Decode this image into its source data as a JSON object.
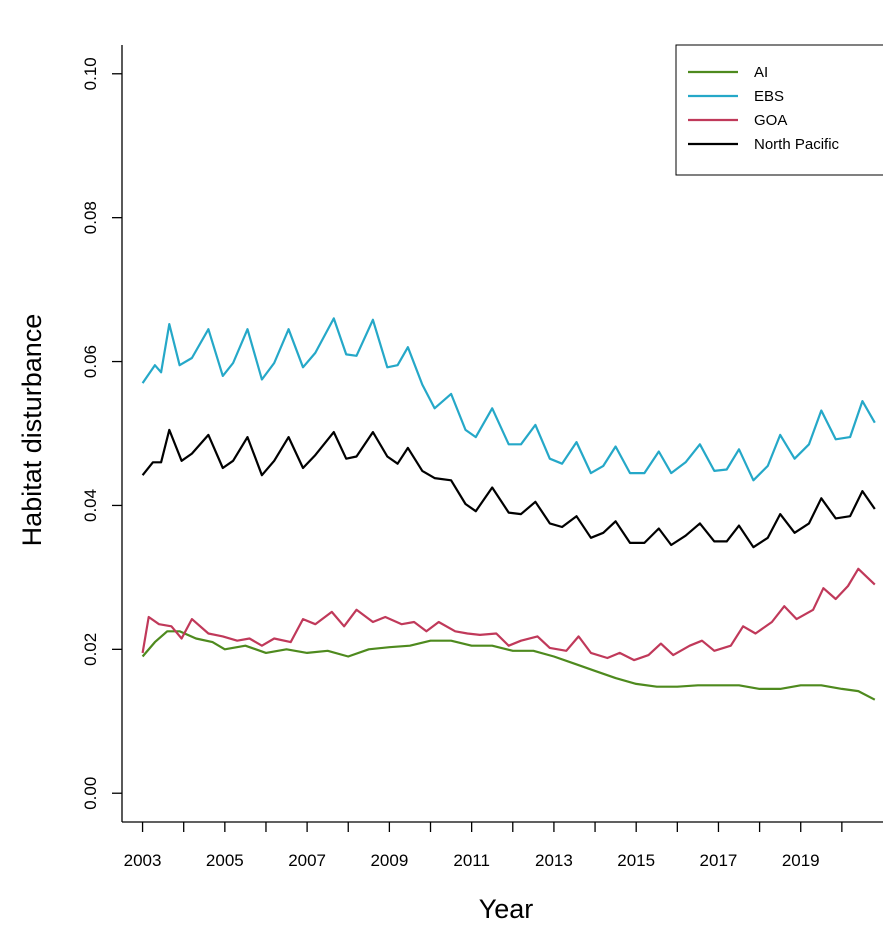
{
  "chart_data": {
    "type": "line",
    "title": "",
    "xlabel": "Year",
    "ylabel": "Habitat disturbance",
    "xlim": [
      2002.5,
      2021.0
    ],
    "ylim": [
      -0.004,
      0.104
    ],
    "x_ticks": [
      2003,
      2004,
      2005,
      2006,
      2007,
      2008,
      2009,
      2010,
      2011,
      2012,
      2013,
      2014,
      2015,
      2016,
      2017,
      2018,
      2019,
      2020
    ],
    "x_tick_labels": [
      "2003",
      "",
      "2005",
      "",
      "2007",
      "",
      "2009",
      "",
      "2011",
      "",
      "2013",
      "",
      "2015",
      "",
      "2017",
      "",
      "2019",
      ""
    ],
    "y_ticks": [
      0.0,
      0.02,
      0.04,
      0.06,
      0.08,
      0.1
    ],
    "y_tick_labels": [
      "0.00",
      "0.02",
      "0.04",
      "0.06",
      "0.08",
      "0.10"
    ],
    "grid": false,
    "legend_position": "top-right",
    "series": [
      {
        "name": "AI",
        "color": "#4e8a1e",
        "points": [
          [
            2003.0,
            0.019
          ],
          [
            2003.3,
            0.021
          ],
          [
            2003.6,
            0.0225
          ],
          [
            2003.9,
            0.0225
          ],
          [
            2004.3,
            0.0215
          ],
          [
            2004.7,
            0.021
          ],
          [
            2005.0,
            0.02
          ],
          [
            2005.5,
            0.0205
          ],
          [
            2006.0,
            0.0195
          ],
          [
            2006.5,
            0.02
          ],
          [
            2007.0,
            0.0195
          ],
          [
            2007.5,
            0.0198
          ],
          [
            2008.0,
            0.019
          ],
          [
            2008.5,
            0.02
          ],
          [
            2009.0,
            0.0203
          ],
          [
            2009.5,
            0.0205
          ],
          [
            2010.0,
            0.0212
          ],
          [
            2010.5,
            0.0212
          ],
          [
            2011.0,
            0.0205
          ],
          [
            2011.5,
            0.0205
          ],
          [
            2012.0,
            0.0198
          ],
          [
            2012.5,
            0.0198
          ],
          [
            2013.0,
            0.019
          ],
          [
            2013.5,
            0.018
          ],
          [
            2014.0,
            0.017
          ],
          [
            2014.5,
            0.016
          ],
          [
            2015.0,
            0.0152
          ],
          [
            2015.5,
            0.0148
          ],
          [
            2016.0,
            0.0148
          ],
          [
            2016.5,
            0.015
          ],
          [
            2017.0,
            0.015
          ],
          [
            2017.5,
            0.015
          ],
          [
            2018.0,
            0.0145
          ],
          [
            2018.5,
            0.0145
          ],
          [
            2019.0,
            0.015
          ],
          [
            2019.5,
            0.015
          ],
          [
            2020.0,
            0.0145
          ],
          [
            2020.4,
            0.0142
          ],
          [
            2020.8,
            0.013
          ]
        ]
      },
      {
        "name": "EBS",
        "color": "#25a8c8",
        "points": [
          [
            2003.0,
            0.057
          ],
          [
            2003.3,
            0.0595
          ],
          [
            2003.45,
            0.0585
          ],
          [
            2003.65,
            0.0652
          ],
          [
            2003.9,
            0.0595
          ],
          [
            2004.2,
            0.0605
          ],
          [
            2004.6,
            0.0645
          ],
          [
            2004.95,
            0.058
          ],
          [
            2005.2,
            0.0598
          ],
          [
            2005.55,
            0.0645
          ],
          [
            2005.9,
            0.0575
          ],
          [
            2006.2,
            0.0598
          ],
          [
            2006.55,
            0.0645
          ],
          [
            2006.9,
            0.0592
          ],
          [
            2007.2,
            0.0612
          ],
          [
            2007.65,
            0.066
          ],
          [
            2007.95,
            0.061
          ],
          [
            2008.2,
            0.0608
          ],
          [
            2008.6,
            0.0658
          ],
          [
            2008.95,
            0.0592
          ],
          [
            2009.2,
            0.0595
          ],
          [
            2009.45,
            0.062
          ],
          [
            2009.8,
            0.0568
          ],
          [
            2010.1,
            0.0535
          ],
          [
            2010.5,
            0.0555
          ],
          [
            2010.85,
            0.0505
          ],
          [
            2011.1,
            0.0495
          ],
          [
            2011.5,
            0.0535
          ],
          [
            2011.9,
            0.0485
          ],
          [
            2012.2,
            0.0485
          ],
          [
            2012.55,
            0.0512
          ],
          [
            2012.9,
            0.0465
          ],
          [
            2013.2,
            0.0458
          ],
          [
            2013.55,
            0.0488
          ],
          [
            2013.9,
            0.0445
          ],
          [
            2014.2,
            0.0455
          ],
          [
            2014.5,
            0.0482
          ],
          [
            2014.85,
            0.0445
          ],
          [
            2015.2,
            0.0445
          ],
          [
            2015.55,
            0.0475
          ],
          [
            2015.85,
            0.0445
          ],
          [
            2016.2,
            0.046
          ],
          [
            2016.55,
            0.0485
          ],
          [
            2016.9,
            0.0448
          ],
          [
            2017.2,
            0.045
          ],
          [
            2017.5,
            0.0478
          ],
          [
            2017.85,
            0.0435
          ],
          [
            2018.2,
            0.0455
          ],
          [
            2018.5,
            0.0498
          ],
          [
            2018.85,
            0.0465
          ],
          [
            2019.2,
            0.0485
          ],
          [
            2019.5,
            0.0532
          ],
          [
            2019.85,
            0.0492
          ],
          [
            2020.2,
            0.0495
          ],
          [
            2020.5,
            0.0545
          ],
          [
            2020.8,
            0.0515
          ]
        ]
      },
      {
        "name": "GOA",
        "color": "#c0395a",
        "points": [
          [
            2003.0,
            0.0195
          ],
          [
            2003.15,
            0.0245
          ],
          [
            2003.4,
            0.0235
          ],
          [
            2003.7,
            0.0232
          ],
          [
            2003.95,
            0.0215
          ],
          [
            2004.2,
            0.0242
          ],
          [
            2004.6,
            0.0222
          ],
          [
            2004.95,
            0.0218
          ],
          [
            2005.3,
            0.0212
          ],
          [
            2005.6,
            0.0215
          ],
          [
            2005.9,
            0.0205
          ],
          [
            2006.2,
            0.0215
          ],
          [
            2006.6,
            0.021
          ],
          [
            2006.9,
            0.0242
          ],
          [
            2007.2,
            0.0235
          ],
          [
            2007.6,
            0.0252
          ],
          [
            2007.9,
            0.0232
          ],
          [
            2008.2,
            0.0255
          ],
          [
            2008.6,
            0.0238
          ],
          [
            2008.9,
            0.0245
          ],
          [
            2009.3,
            0.0235
          ],
          [
            2009.6,
            0.0238
          ],
          [
            2009.9,
            0.0225
          ],
          [
            2010.2,
            0.0238
          ],
          [
            2010.6,
            0.0225
          ],
          [
            2010.9,
            0.0222
          ],
          [
            2011.2,
            0.022
          ],
          [
            2011.6,
            0.0222
          ],
          [
            2011.9,
            0.0205
          ],
          [
            2012.2,
            0.0212
          ],
          [
            2012.6,
            0.0218
          ],
          [
            2012.9,
            0.0202
          ],
          [
            2013.3,
            0.0198
          ],
          [
            2013.6,
            0.0218
          ],
          [
            2013.9,
            0.0195
          ],
          [
            2014.3,
            0.0188
          ],
          [
            2014.6,
            0.0195
          ],
          [
            2014.95,
            0.0185
          ],
          [
            2015.3,
            0.0192
          ],
          [
            2015.6,
            0.0208
          ],
          [
            2015.9,
            0.0192
          ],
          [
            2016.3,
            0.0205
          ],
          [
            2016.6,
            0.0212
          ],
          [
            2016.9,
            0.0198
          ],
          [
            2017.3,
            0.0205
          ],
          [
            2017.6,
            0.0232
          ],
          [
            2017.9,
            0.0222
          ],
          [
            2018.3,
            0.0238
          ],
          [
            2018.6,
            0.026
          ],
          [
            2018.9,
            0.0242
          ],
          [
            2019.3,
            0.0255
          ],
          [
            2019.55,
            0.0285
          ],
          [
            2019.85,
            0.027
          ],
          [
            2020.15,
            0.0288
          ],
          [
            2020.4,
            0.0312
          ],
          [
            2020.8,
            0.029
          ]
        ]
      },
      {
        "name": "North Pacific",
        "color": "#000000",
        "points": [
          [
            2003.0,
            0.0442
          ],
          [
            2003.25,
            0.046
          ],
          [
            2003.45,
            0.046
          ],
          [
            2003.65,
            0.0505
          ],
          [
            2003.95,
            0.0462
          ],
          [
            2004.2,
            0.0472
          ],
          [
            2004.6,
            0.0498
          ],
          [
            2004.95,
            0.0452
          ],
          [
            2005.2,
            0.0462
          ],
          [
            2005.55,
            0.0495
          ],
          [
            2005.9,
            0.0442
          ],
          [
            2006.2,
            0.0462
          ],
          [
            2006.55,
            0.0495
          ],
          [
            2006.9,
            0.0452
          ],
          [
            2007.2,
            0.047
          ],
          [
            2007.65,
            0.0502
          ],
          [
            2007.95,
            0.0465
          ],
          [
            2008.2,
            0.0468
          ],
          [
            2008.6,
            0.0502
          ],
          [
            2008.95,
            0.0468
          ],
          [
            2009.2,
            0.0458
          ],
          [
            2009.45,
            0.048
          ],
          [
            2009.8,
            0.0448
          ],
          [
            2010.1,
            0.0438
          ],
          [
            2010.5,
            0.0435
          ],
          [
            2010.85,
            0.0402
          ],
          [
            2011.1,
            0.0392
          ],
          [
            2011.5,
            0.0425
          ],
          [
            2011.9,
            0.039
          ],
          [
            2012.2,
            0.0388
          ],
          [
            2012.55,
            0.0405
          ],
          [
            2012.9,
            0.0375
          ],
          [
            2013.2,
            0.037
          ],
          [
            2013.55,
            0.0385
          ],
          [
            2013.9,
            0.0355
          ],
          [
            2014.2,
            0.0362
          ],
          [
            2014.5,
            0.0378
          ],
          [
            2014.85,
            0.0348
          ],
          [
            2015.2,
            0.0348
          ],
          [
            2015.55,
            0.0368
          ],
          [
            2015.85,
            0.0345
          ],
          [
            2016.2,
            0.0358
          ],
          [
            2016.55,
            0.0375
          ],
          [
            2016.9,
            0.035
          ],
          [
            2017.2,
            0.035
          ],
          [
            2017.5,
            0.0372
          ],
          [
            2017.85,
            0.0342
          ],
          [
            2018.2,
            0.0355
          ],
          [
            2018.5,
            0.0388
          ],
          [
            2018.85,
            0.0362
          ],
          [
            2019.2,
            0.0375
          ],
          [
            2019.5,
            0.041
          ],
          [
            2019.85,
            0.0382
          ],
          [
            2020.2,
            0.0385
          ],
          [
            2020.5,
            0.042
          ],
          [
            2020.8,
            0.0395
          ]
        ]
      }
    ]
  }
}
